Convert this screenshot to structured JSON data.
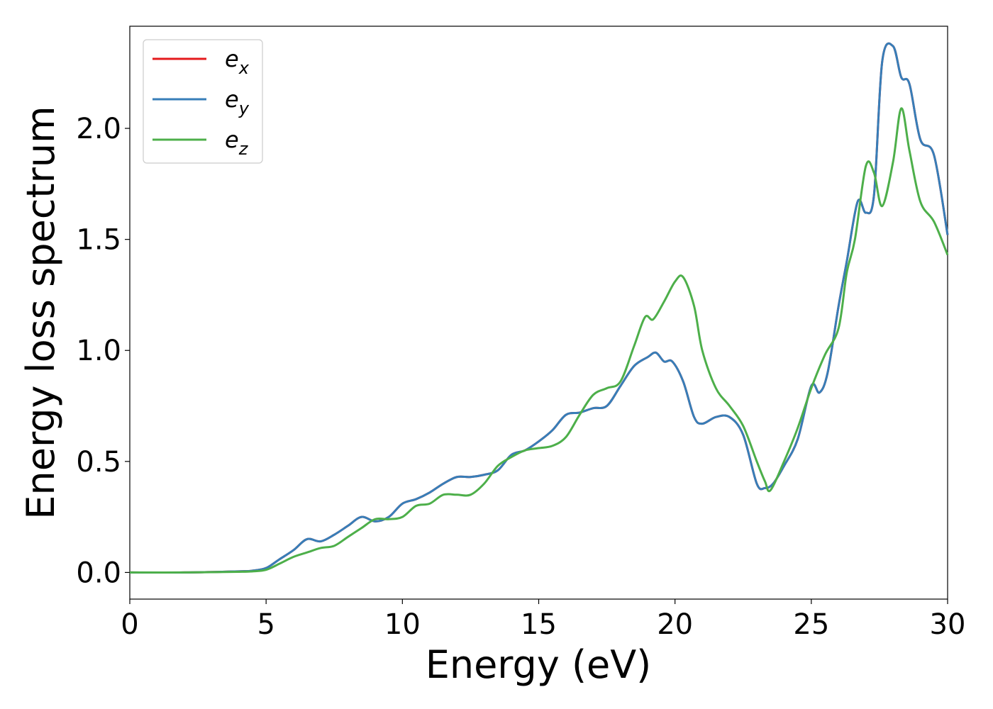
{
  "chart_data": {
    "type": "line",
    "title": "",
    "xlabel": "Energy (eV)",
    "ylabel": "Energy loss spectrum",
    "xlim": [
      0,
      30
    ],
    "ylim": [
      -0.12,
      2.46
    ],
    "xticks": [
      0,
      5,
      10,
      15,
      20,
      25,
      30
    ],
    "xtick_labels": [
      "0",
      "5",
      "10",
      "15",
      "20",
      "25",
      "30"
    ],
    "yticks": [
      0.0,
      0.5,
      1.0,
      1.5,
      2.0
    ],
    "ytick_labels": [
      "0.0",
      "0.5",
      "1.0",
      "1.5",
      "2.0"
    ],
    "grid": false,
    "legend_position": "top-left",
    "series": [
      {
        "name": "e_x",
        "legend_base": "e",
        "legend_sub": "x",
        "color": "#e41a1c",
        "x": [
          0,
          2,
          4,
          4.5,
          5,
          5.5,
          6,
          6.5,
          7,
          7.5,
          8,
          8.5,
          9,
          9.5,
          10,
          10.5,
          11,
          11.5,
          12,
          12.5,
          13,
          13.5,
          14,
          14.5,
          15,
          15.5,
          16,
          16.5,
          17,
          17.5,
          18,
          18.5,
          19,
          19.3,
          19.6,
          19.9,
          20.3,
          20.7,
          21,
          21.5,
          22,
          22.5,
          23,
          23.3,
          23.6,
          24,
          24.5,
          25,
          25.3,
          25.6,
          26,
          26.3,
          26.7,
          27,
          27.3,
          27.6,
          28,
          28.3,
          28.6,
          29,
          29.5,
          30
        ],
        "y": [
          0,
          0,
          0.005,
          0.008,
          0.02,
          0.06,
          0.1,
          0.15,
          0.14,
          0.17,
          0.21,
          0.25,
          0.23,
          0.25,
          0.31,
          0.33,
          0.36,
          0.4,
          0.43,
          0.43,
          0.44,
          0.46,
          0.53,
          0.55,
          0.59,
          0.64,
          0.71,
          0.72,
          0.74,
          0.75,
          0.84,
          0.93,
          0.97,
          0.99,
          0.95,
          0.95,
          0.86,
          0.7,
          0.67,
          0.7,
          0.7,
          0.62,
          0.4,
          0.38,
          0.4,
          0.48,
          0.6,
          0.84,
          0.81,
          0.9,
          1.2,
          1.4,
          1.67,
          1.62,
          1.7,
          2.3,
          2.37,
          2.23,
          2.2,
          1.95,
          1.88,
          1.52
        ]
      },
      {
        "name": "e_y",
        "legend_base": "e",
        "legend_sub": "y",
        "color": "#377eb8",
        "x": [
          0,
          2,
          4,
          4.5,
          5,
          5.5,
          6,
          6.5,
          7,
          7.5,
          8,
          8.5,
          9,
          9.5,
          10,
          10.5,
          11,
          11.5,
          12,
          12.5,
          13,
          13.5,
          14,
          14.5,
          15,
          15.5,
          16,
          16.5,
          17,
          17.5,
          18,
          18.5,
          19,
          19.3,
          19.6,
          19.9,
          20.3,
          20.7,
          21,
          21.5,
          22,
          22.5,
          23,
          23.3,
          23.6,
          24,
          24.5,
          25,
          25.3,
          25.6,
          26,
          26.3,
          26.7,
          27,
          27.3,
          27.6,
          28,
          28.3,
          28.6,
          29,
          29.5,
          30
        ],
        "y": [
          0,
          0,
          0.005,
          0.008,
          0.02,
          0.06,
          0.1,
          0.15,
          0.14,
          0.17,
          0.21,
          0.25,
          0.23,
          0.25,
          0.31,
          0.33,
          0.36,
          0.4,
          0.43,
          0.43,
          0.44,
          0.46,
          0.53,
          0.55,
          0.59,
          0.64,
          0.71,
          0.72,
          0.74,
          0.75,
          0.84,
          0.93,
          0.97,
          0.99,
          0.95,
          0.95,
          0.86,
          0.7,
          0.67,
          0.7,
          0.7,
          0.62,
          0.4,
          0.38,
          0.4,
          0.48,
          0.6,
          0.84,
          0.81,
          0.9,
          1.2,
          1.4,
          1.67,
          1.62,
          1.7,
          2.3,
          2.37,
          2.23,
          2.2,
          1.95,
          1.88,
          1.52
        ]
      },
      {
        "name": "e_z",
        "legend_base": "e",
        "legend_sub": "z",
        "color": "#4daf4a",
        "x": [
          0,
          2,
          4,
          4.5,
          5,
          5.5,
          6,
          6.5,
          7,
          7.5,
          8,
          8.5,
          9,
          9.5,
          10,
          10.5,
          11,
          11.5,
          12,
          12.5,
          13,
          13.5,
          14,
          14.5,
          15,
          15.5,
          16,
          16.5,
          17,
          17.5,
          18,
          18.5,
          18.9,
          19.2,
          19.6,
          20,
          20.3,
          20.7,
          21,
          21.5,
          22,
          22.5,
          23,
          23.3,
          23.5,
          24,
          24.5,
          25,
          25.5,
          26,
          26.3,
          26.6,
          27,
          27.3,
          27.6,
          28,
          28.3,
          28.6,
          29,
          29.5,
          30
        ],
        "y": [
          0,
          0,
          0.003,
          0.005,
          0.012,
          0.04,
          0.07,
          0.09,
          0.11,
          0.12,
          0.16,
          0.2,
          0.24,
          0.24,
          0.25,
          0.3,
          0.31,
          0.35,
          0.35,
          0.35,
          0.4,
          0.48,
          0.52,
          0.55,
          0.56,
          0.57,
          0.61,
          0.71,
          0.8,
          0.83,
          0.86,
          1.02,
          1.15,
          1.14,
          1.22,
          1.31,
          1.33,
          1.2,
          1.0,
          0.83,
          0.75,
          0.66,
          0.5,
          0.41,
          0.37,
          0.5,
          0.65,
          0.83,
          0.98,
          1.1,
          1.35,
          1.5,
          1.83,
          1.8,
          1.65,
          1.85,
          2.09,
          1.9,
          1.67,
          1.58,
          1.43
        ]
      }
    ]
  }
}
